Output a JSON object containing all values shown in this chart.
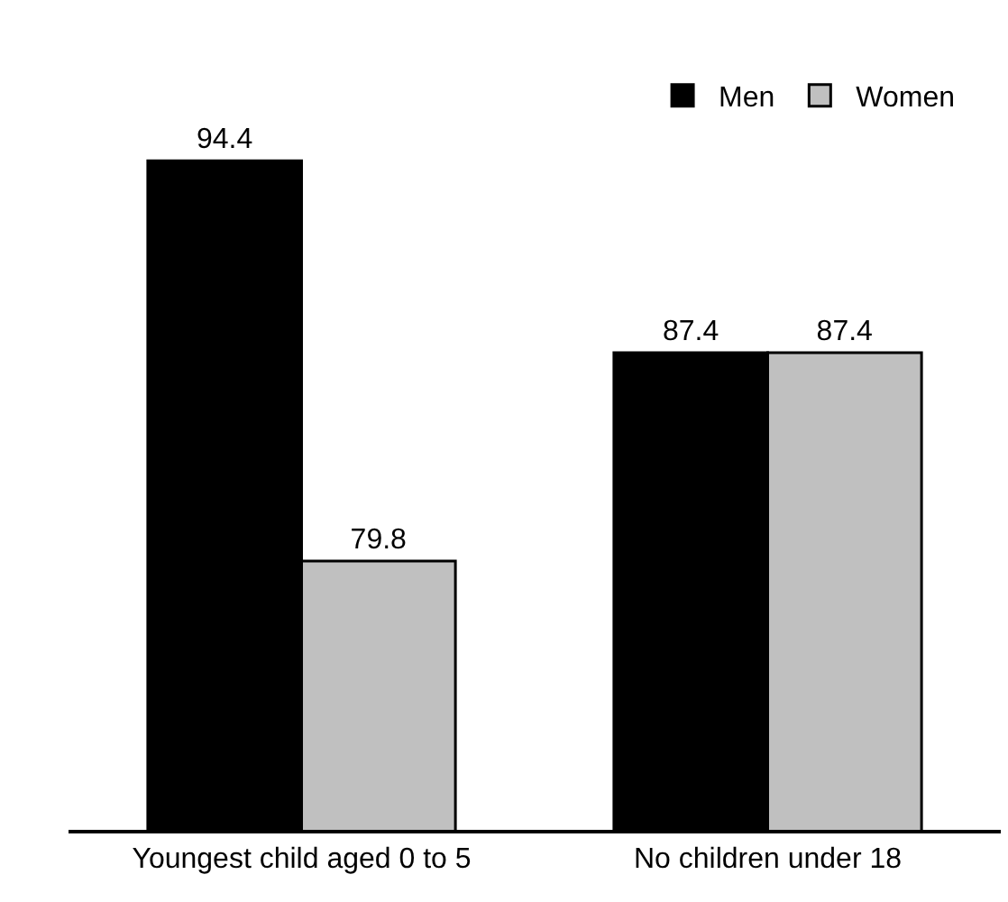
{
  "chart_data": {
    "type": "bar",
    "categories": [
      "Youngest child aged 0 to 5",
      "No children under 18"
    ],
    "series": [
      {
        "name": "Men",
        "color": "#000000",
        "values": [
          94.4,
          87.4
        ]
      },
      {
        "name": "Women",
        "color": "#c0c0c0",
        "values": [
          79.8,
          87.4
        ]
      }
    ],
    "ylim": [
      70,
      100
    ],
    "tick_labels": "x",
    "data_labels": true,
    "legend": "top right",
    "grid": false
  }
}
